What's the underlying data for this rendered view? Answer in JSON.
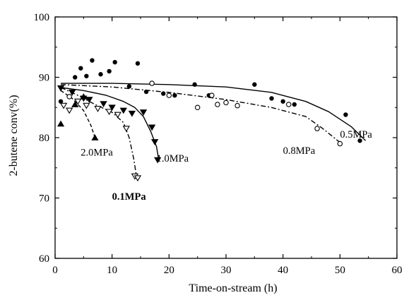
{
  "chart_data": {
    "type": "scatter",
    "title": "",
    "xlabel": "Time-on-stream (h)",
    "ylabel": "2-butene conv(%)",
    "xlim": [
      0,
      60
    ],
    "ylim": [
      60,
      100
    ],
    "xticks": [
      0,
      10,
      20,
      30,
      40,
      50,
      60
    ],
    "yticks": [
      60,
      70,
      80,
      90,
      100
    ],
    "grid": false,
    "legend": "none",
    "series": [
      {
        "name": "0.1MPa",
        "marker": "open-triangle-down",
        "line": "dash-dot",
        "points": [
          [
            1.5,
            85.3
          ],
          [
            2.5,
            84.5
          ],
          [
            4.0,
            86.0
          ],
          [
            5.5,
            85.3
          ],
          [
            7.5,
            84.8
          ],
          [
            9.5,
            84.3
          ],
          [
            11.0,
            83.8
          ],
          [
            12.5,
            81.5
          ],
          [
            14.0,
            73.6
          ],
          [
            14.5,
            73.3
          ]
        ],
        "curve": [
          [
            1,
            88.3
          ],
          [
            4,
            87.0
          ],
          [
            7,
            85.5
          ],
          [
            10,
            84.2
          ],
          [
            12,
            82.5
          ],
          [
            13,
            80.0
          ],
          [
            13.8,
            76.5
          ],
          [
            14.3,
            73.5
          ]
        ]
      },
      {
        "name": "0.5MPa",
        "marker": "filled-circle",
        "line": "solid",
        "points": [
          [
            1.0,
            86.0
          ],
          [
            3.5,
            90.0
          ],
          [
            4.5,
            91.5
          ],
          [
            5.5,
            90.2
          ],
          [
            6.5,
            92.8
          ],
          [
            8.0,
            90.5
          ],
          [
            9.5,
            91.0
          ],
          [
            10.5,
            92.5
          ],
          [
            13.0,
            88.5
          ],
          [
            14.5,
            92.3
          ],
          [
            16.0,
            87.6
          ],
          [
            19.0,
            87.3
          ],
          [
            21.0,
            87.0
          ],
          [
            24.5,
            88.8
          ],
          [
            27.0,
            87.0
          ],
          [
            35.0,
            88.8
          ],
          [
            38.0,
            86.5
          ],
          [
            40.0,
            86.0
          ],
          [
            42.0,
            85.5
          ],
          [
            51.0,
            83.8
          ],
          [
            53.5,
            79.5
          ]
        ],
        "curve": [
          [
            1,
            89.0
          ],
          [
            10,
            89.0
          ],
          [
            20,
            88.8
          ],
          [
            30,
            88.4
          ],
          [
            38,
            87.5
          ],
          [
            44,
            86.0
          ],
          [
            48,
            84.3
          ],
          [
            52,
            81.8
          ],
          [
            54.5,
            79.5
          ]
        ]
      },
      {
        "name": "0.8MPa",
        "marker": "open-circle",
        "line": "dash-dot",
        "points": [
          [
            2.5,
            86.8
          ],
          [
            17.0,
            89.0
          ],
          [
            20.0,
            87.0
          ],
          [
            25.0,
            85.0
          ],
          [
            27.5,
            87.0
          ],
          [
            28.5,
            85.5
          ],
          [
            30.0,
            85.8
          ],
          [
            32.0,
            85.3
          ],
          [
            41.0,
            85.5
          ],
          [
            46.0,
            81.5
          ],
          [
            50.0,
            79.0
          ]
        ],
        "curve": [
          [
            1,
            88.8
          ],
          [
            10,
            88.4
          ],
          [
            20,
            87.5
          ],
          [
            30,
            86.3
          ],
          [
            38,
            85.0
          ],
          [
            44,
            83.5
          ],
          [
            47,
            81.5
          ],
          [
            50,
            79.2
          ]
        ]
      },
      {
        "name": "1.0MPa",
        "marker": "filled-triangle-down",
        "line": "solid",
        "points": [
          [
            1.0,
            88.2
          ],
          [
            3.0,
            87.5
          ],
          [
            5.0,
            86.5
          ],
          [
            6.0,
            86.3
          ],
          [
            8.5,
            85.6
          ],
          [
            10.0,
            85.0
          ],
          [
            12.0,
            84.5
          ],
          [
            13.5,
            84.0
          ],
          [
            15.5,
            84.2
          ],
          [
            17.0,
            81.7
          ],
          [
            17.5,
            79.3
          ],
          [
            18.0,
            76.3
          ]
        ],
        "curve": [
          [
            1,
            88.3
          ],
          [
            5,
            87.8
          ],
          [
            9,
            87.0
          ],
          [
            12,
            86.0
          ],
          [
            14,
            85.0
          ],
          [
            15.5,
            83.5
          ],
          [
            16.8,
            81.0
          ],
          [
            17.8,
            78.5
          ],
          [
            18.2,
            76.3
          ]
        ]
      },
      {
        "name": "2.0MPa",
        "marker": "filled-triangle-up",
        "line": "dashed",
        "points": [
          [
            1.0,
            82.3
          ],
          [
            3.5,
            85.5
          ],
          [
            5.0,
            86.8
          ],
          [
            7.0,
            80.0
          ]
        ],
        "curve": [
          [
            1,
            87.8
          ],
          [
            3,
            86.5
          ],
          [
            5,
            84.5
          ],
          [
            6.3,
            82.0
          ],
          [
            7.0,
            80.0
          ]
        ]
      }
    ],
    "annotations": [
      {
        "text": "2.0MPa",
        "x": 4.5,
        "y": 77.0
      },
      {
        "text": "1.0MPa",
        "x": 17.8,
        "y": 76.0
      },
      {
        "text": "0.1MPa",
        "x": 10.0,
        "y": 69.7,
        "bold": true
      },
      {
        "text": "0.8MPa",
        "x": 40.0,
        "y": 77.3
      },
      {
        "text": "0.5MPa",
        "x": 50.0,
        "y": 80.0
      }
    ]
  }
}
